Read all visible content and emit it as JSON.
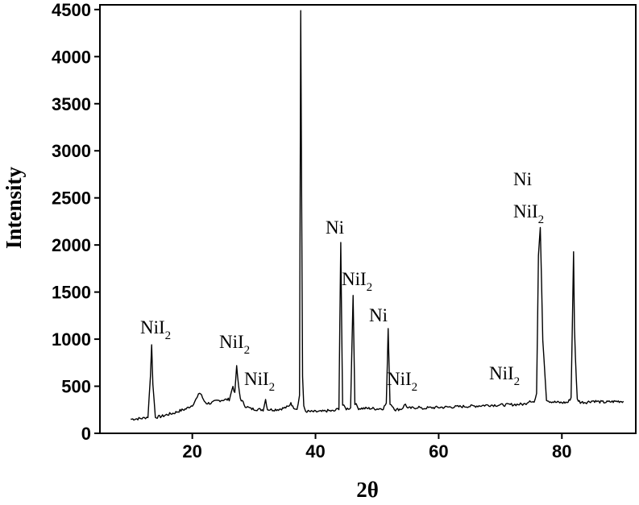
{
  "chart_data": {
    "type": "line",
    "xlabel": "2θ",
    "ylabel": "Intensity",
    "xlim": [
      5,
      92
    ],
    "ylim": [
      0,
      4550
    ],
    "xticks": [
      20,
      40,
      60,
      80
    ],
    "yticks": [
      0,
      500,
      1000,
      1500,
      2000,
      2500,
      3000,
      3500,
      4000,
      4500
    ],
    "grid": false,
    "line_color": "#000000",
    "series": [
      {
        "values_note": "",
        "x": [
          10,
          11,
          12,
          12.8,
          13.2,
          13.4,
          13.6,
          14,
          15,
          16,
          17,
          18,
          19,
          20,
          20.8,
          21.2,
          21.5,
          21.8,
          22.3,
          23,
          24,
          25,
          26,
          26.6,
          26.9,
          27.2,
          27.5,
          27.8,
          28.1,
          28.6,
          29.5,
          30.5,
          31.5,
          31.9,
          32.2,
          33,
          34,
          35,
          35.7,
          36,
          36.3,
          37,
          37.4,
          37.6,
          37.75,
          37.9,
          38.1,
          38.4,
          39,
          40,
          41,
          42,
          43,
          43.8,
          44.1,
          44.4,
          45,
          45.7,
          46.1,
          46.4,
          47,
          48,
          49,
          50,
          51,
          51.5,
          51.8,
          52.1,
          53,
          54,
          54.6,
          55,
          56,
          56.8,
          57.2,
          58,
          60,
          62,
          64,
          66,
          68,
          70,
          72,
          74,
          74.8,
          75.5,
          75.9,
          76.2,
          76.5,
          76.9,
          77.5,
          78,
          79,
          80,
          81,
          81.5,
          81.9,
          82.05,
          82.2,
          82.5,
          83,
          84,
          85,
          86,
          87,
          88,
          89,
          90
        ],
        "y": [
          150,
          155,
          160,
          175,
          600,
          950,
          520,
          170,
          180,
          200,
          215,
          240,
          260,
          300,
          380,
          430,
          410,
          350,
          320,
          320,
          345,
          355,
          360,
          500,
          420,
          720,
          500,
          370,
          340,
          290,
          260,
          255,
          250,
          360,
          255,
          250,
          255,
          270,
          285,
          330,
          280,
          260,
          400,
          4490,
          2580,
          600,
          280,
          235,
          230,
          230,
          230,
          240,
          235,
          265,
          2030,
          300,
          260,
          270,
          1470,
          320,
          265,
          265,
          265,
          260,
          265,
          320,
          1100,
          320,
          250,
          260,
          310,
          265,
          270,
          280,
          260,
          270,
          275,
          280,
          285,
          290,
          300,
          300,
          305,
          310,
          350,
          330,
          410,
          1900,
          2190,
          1000,
          360,
          340,
          330,
          325,
          330,
          380,
          1930,
          1130,
          800,
          360,
          330,
          330,
          345,
          335,
          330,
          335,
          340,
          340
        ]
      }
    ],
    "annotations": [
      {
        "label": "NiI",
        "sub": "2"
      },
      {
        "label": "NiI",
        "sub": "2"
      },
      {
        "label": "NiI",
        "sub": "2"
      },
      {
        "label": "Ni",
        "sub": ""
      },
      {
        "label": "NiI",
        "sub": "2"
      },
      {
        "label": "Ni",
        "sub": ""
      },
      {
        "label": "NiI",
        "sub": "2"
      },
      {
        "label": "NiI",
        "sub": "2"
      },
      {
        "label": "Ni",
        "sub": ""
      },
      {
        "label": "NiI",
        "sub": "2"
      }
    ]
  }
}
